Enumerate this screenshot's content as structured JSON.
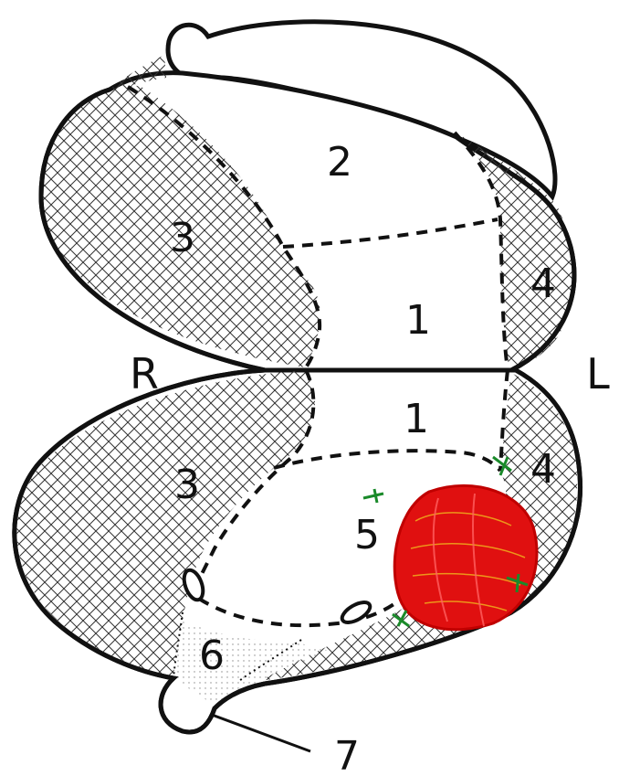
{
  "labels": {
    "region_1_upper": "1",
    "region_1_lower": "1",
    "region_2": "2",
    "region_3_upper": "3",
    "region_3_lower": "3",
    "region_4_upper": "4",
    "region_4_lower": "4",
    "region_5": "5",
    "region_6": "6",
    "region_7": "7",
    "side_right": "R",
    "side_left": "L"
  },
  "colors": {
    "outline": "#111111",
    "hatch": "#333333",
    "lesion": "#e01010",
    "lesion_strokes": "#f2d020",
    "markers": "#1a8a2a"
  }
}
